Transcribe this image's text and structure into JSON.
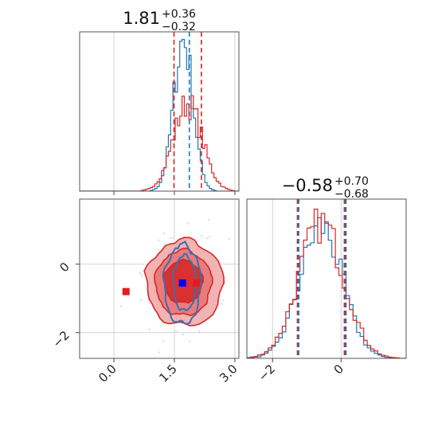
{
  "chart_data": {
    "type": "corner",
    "params": [
      {
        "title": {
          "median": "1.81",
          "plus": "+0.36",
          "minus": "−0.32"
        },
        "range": [
          -0.85,
          3.1
        ],
        "ticks": [
          {
            "value": 0.0,
            "label": "0.0"
          },
          {
            "value": 1.5,
            "label": "1.5"
          },
          {
            "value": 3.0,
            "label": "3.0"
          }
        ],
        "grid": [
          0.0,
          1.5,
          3.0
        ],
        "quantile_lines": [
          {
            "value": 1.49,
            "color": "#d62728"
          },
          {
            "value": 1.87,
            "color": "#1f77b4"
          },
          {
            "value": 2.17,
            "color": "#d62728"
          }
        ]
      },
      {
        "title": {
          "median": "−0.58",
          "plus": "+0.70",
          "minus": "−0.68"
        },
        "range": [
          -2.75,
          1.9
        ],
        "ticks": [
          {
            "value": -2,
            "label": "−2"
          },
          {
            "value": 0,
            "label": "0"
          }
        ],
        "grid": [
          -2,
          0
        ],
        "quantile_lines": [
          {
            "value": -1.27,
            "color": "#d62728"
          },
          {
            "value": -1.24,
            "color": "#1f77b4"
          },
          {
            "value": 0.1,
            "color": "#d62728"
          },
          {
            "value": 0.14,
            "color": "#1f77b4"
          }
        ]
      }
    ],
    "series": [
      {
        "color": "#1f77b4",
        "hist1": {
          "center": 1.72,
          "sd": 0.24,
          "norm": 0.95
        },
        "hist2": {
          "center": -0.58,
          "sd": 0.62,
          "norm": 0.9
        }
      },
      {
        "color": "#d62728",
        "hist1": {
          "center": 1.83,
          "sd": 0.36,
          "norm": 0.55
        },
        "hist2": {
          "center": -0.58,
          "sd": 0.66,
          "norm": 0.92
        }
      }
    ],
    "markers": [
      {
        "x": 0.3,
        "y": -0.8,
        "color": "#e41a1c"
      },
      {
        "x": 1.7,
        "y": -0.55,
        "color": "#0000ff"
      },
      {
        "x": 2.05,
        "y": -0.55,
        "color": "#e41a1c"
      }
    ],
    "contours_red": [
      {
        "cx": 1.75,
        "cy": -0.55,
        "rx": 0.95,
        "ry": 1.25,
        "fill": "#f2b3b3"
      },
      {
        "cx": 1.72,
        "cy": -0.55,
        "rx": 0.7,
        "ry": 0.95,
        "fill": "#ea7b7b"
      },
      {
        "cx": 1.72,
        "cy": -0.52,
        "rx": 0.48,
        "ry": 0.62,
        "fill": "#d93030"
      }
    ],
    "contours_blue": [
      {
        "cx": 1.7,
        "cy": -0.6,
        "rx": 0.45,
        "ry": 1.15
      },
      {
        "cx": 1.75,
        "cy": -0.55,
        "rx": 0.28,
        "ry": 0.8
      }
    ]
  }
}
